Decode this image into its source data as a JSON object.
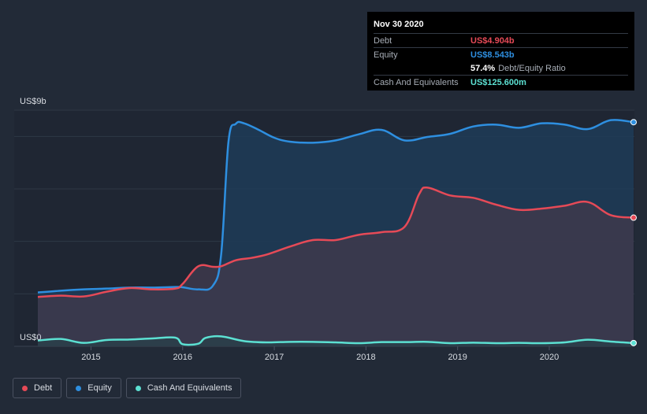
{
  "tooltip": {
    "date": "Nov 30 2020",
    "debt_label": "Debt",
    "debt_value": "US$4.904b",
    "equity_label": "Equity",
    "equity_value": "US$8.543b",
    "ratio_value": "57.4%",
    "ratio_label": "Debt/Equity Ratio",
    "cash_label": "Cash And Equivalents",
    "cash_value": "US$125.600m"
  },
  "legend": [
    {
      "label": "Debt",
      "color": "#e64a57"
    },
    {
      "label": "Equity",
      "color": "#2e8fe0"
    },
    {
      "label": "Cash And Equivalents",
      "color": "#5ce0d2"
    }
  ],
  "chart_data": {
    "type": "area",
    "y_top_label": "US$9b",
    "y_bottom_label": "US$0",
    "ylim": [
      0,
      9
    ],
    "xlim": [
      2014.42,
      2020.92
    ],
    "x_ticks": [
      2015,
      2016,
      2017,
      2018,
      2019,
      2020
    ],
    "x_tick_labels": [
      "2015",
      "2016",
      "2017",
      "2018",
      "2019",
      "2020"
    ],
    "grid": true,
    "legend_position": "bottom-left",
    "series": [
      {
        "name": "Equity",
        "color": "#2e8fe0",
        "x": [
          2014.42,
          2014.67,
          2014.92,
          2015.17,
          2015.42,
          2015.67,
          2015.92,
          2016.0,
          2016.17,
          2016.33,
          2016.42,
          2016.5,
          2016.58,
          2016.67,
          2016.83,
          2017.0,
          2017.17,
          2017.42,
          2017.67,
          2017.92,
          2018.17,
          2018.42,
          2018.67,
          2018.92,
          2019.17,
          2019.42,
          2019.67,
          2019.92,
          2020.17,
          2020.42,
          2020.67,
          2020.92
        ],
        "values": [
          2.05,
          2.12,
          2.17,
          2.2,
          2.24,
          2.24,
          2.26,
          2.25,
          2.17,
          2.31,
          3.5,
          7.8,
          8.48,
          8.5,
          8.25,
          7.95,
          7.8,
          7.76,
          7.85,
          8.08,
          8.25,
          7.85,
          7.98,
          8.1,
          8.38,
          8.45,
          8.33,
          8.5,
          8.45,
          8.28,
          8.62,
          8.543
        ]
      },
      {
        "name": "Debt",
        "color": "#e64a57",
        "x": [
          2014.42,
          2014.67,
          2014.92,
          2015.17,
          2015.42,
          2015.67,
          2015.92,
          2016.0,
          2016.17,
          2016.33,
          2016.42,
          2016.58,
          2016.75,
          2016.92,
          2017.17,
          2017.42,
          2017.67,
          2017.92,
          2018.17,
          2018.42,
          2018.58,
          2018.67,
          2018.92,
          2019.17,
          2019.42,
          2019.67,
          2019.92,
          2020.17,
          2020.42,
          2020.67,
          2020.92
        ],
        "values": [
          1.88,
          1.93,
          1.9,
          2.08,
          2.22,
          2.17,
          2.2,
          2.38,
          3.05,
          3.03,
          3.05,
          3.28,
          3.37,
          3.5,
          3.8,
          4.05,
          4.05,
          4.25,
          4.35,
          4.55,
          5.8,
          6.05,
          5.75,
          5.66,
          5.4,
          5.2,
          5.25,
          5.36,
          5.5,
          5.0,
          4.904
        ]
      },
      {
        "name": "Cash And Equivalents",
        "color": "#5ce0d2",
        "x": [
          2014.42,
          2014.67,
          2014.92,
          2015.17,
          2015.42,
          2015.67,
          2015.92,
          2016.0,
          2016.17,
          2016.25,
          2016.42,
          2016.67,
          2016.92,
          2017.17,
          2017.42,
          2017.67,
          2017.92,
          2018.17,
          2018.42,
          2018.67,
          2018.92,
          2019.17,
          2019.42,
          2019.67,
          2019.92,
          2020.17,
          2020.42,
          2020.67,
          2020.92
        ],
        "values": [
          0.22,
          0.28,
          0.13,
          0.24,
          0.26,
          0.3,
          0.33,
          0.08,
          0.1,
          0.32,
          0.38,
          0.2,
          0.15,
          0.17,
          0.17,
          0.15,
          0.12,
          0.16,
          0.16,
          0.17,
          0.12,
          0.14,
          0.12,
          0.13,
          0.12,
          0.15,
          0.25,
          0.18,
          0.1256
        ]
      }
    ]
  }
}
